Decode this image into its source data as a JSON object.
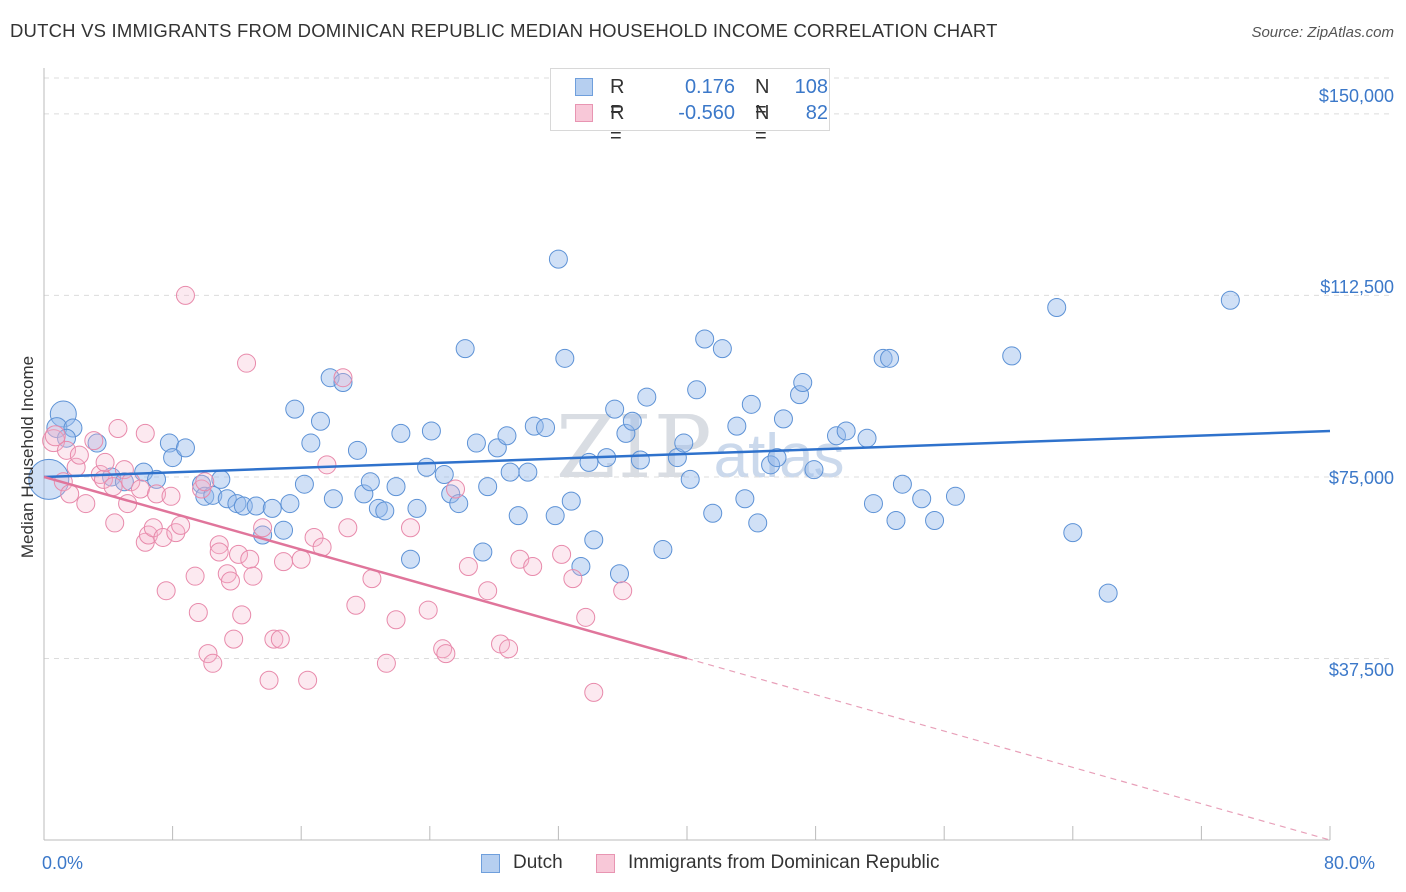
{
  "title": "DUTCH VS IMMIGRANTS FROM DOMINICAN REPUBLIC MEDIAN HOUSEHOLD INCOME CORRELATION CHART",
  "source": "Source: ZipAtlas.com",
  "watermark": {
    "zip": "ZIP",
    "atlas": "atlas"
  },
  "legend": {
    "rows": [
      {
        "r_label": "R =",
        "r_value": "0.176",
        "n_label": "N =",
        "n_value": "108"
      },
      {
        "r_label": "R =",
        "r_value": "-0.560",
        "n_label": "N =",
        "n_value": "82"
      }
    ]
  },
  "chart_data": {
    "type": "scatter",
    "title": "DUTCH VS IMMIGRANTS FROM DOMINICAN REPUBLIC MEDIAN HOUSEHOLD INCOME CORRELATION CHART",
    "xlabel": "",
    "ylabel": "Median Household Income",
    "xlim": [
      0,
      80
    ],
    "ylim": [
      0,
      157000
    ],
    "x_tick_labels": [
      "0.0%",
      "80.0%"
    ],
    "y_ticks": [
      37500,
      75000,
      112500,
      150000
    ],
    "y_tick_labels": [
      "$37,500",
      "$75,000",
      "$112,500",
      "$150,000"
    ],
    "colors": {
      "dutch": "#3b78c9",
      "dominican": "#e0759b"
    },
    "series": [
      {
        "name": "Dutch",
        "legend_label": "Dutch",
        "trend": {
          "x": [
            0,
            80
          ],
          "y": [
            75000,
            84500
          ],
          "style": "solid"
        },
        "points": [
          [
            0.3,
            74500,
            20
          ],
          [
            1.2,
            88000,
            13
          ],
          [
            0.8,
            85200,
            10
          ],
          [
            1.8,
            85100,
            9
          ],
          [
            1.4,
            83000,
            9
          ],
          [
            3.3,
            82000,
            9
          ],
          [
            4.2,
            75000,
            9
          ],
          [
            5,
            74000,
            9
          ],
          [
            6.2,
            76000,
            9
          ],
          [
            7,
            74500,
            9
          ],
          [
            7.8,
            82000,
            9
          ],
          [
            8,
            79000,
            9
          ],
          [
            8.8,
            81000,
            9
          ],
          [
            9.8,
            73500,
            9
          ],
          [
            10,
            71000,
            9
          ],
          [
            10.5,
            71200,
            9
          ],
          [
            11,
            74500,
            9
          ],
          [
            11.4,
            70500,
            9
          ],
          [
            12,
            69500,
            9
          ],
          [
            12.4,
            69000,
            9
          ],
          [
            13.2,
            69000,
            9
          ],
          [
            13.6,
            63000,
            9
          ],
          [
            14.2,
            68500,
            9
          ],
          [
            14.9,
            64000,
            9
          ],
          [
            15.3,
            69500,
            9
          ],
          [
            15.6,
            89000,
            9
          ],
          [
            16.2,
            73500,
            9
          ],
          [
            16.6,
            82000,
            9
          ],
          [
            17.2,
            86500,
            9
          ],
          [
            17.8,
            95500,
            9
          ],
          [
            18,
            70500,
            9
          ],
          [
            18.6,
            94500,
            9
          ],
          [
            19.5,
            80500,
            9
          ],
          [
            19.9,
            71500,
            9
          ],
          [
            20.3,
            74000,
            9
          ],
          [
            20.8,
            68500,
            9
          ],
          [
            21.2,
            68000,
            9
          ],
          [
            21.9,
            73000,
            9
          ],
          [
            22.2,
            84000,
            9
          ],
          [
            22.8,
            58000,
            9
          ],
          [
            23.2,
            68500,
            9
          ],
          [
            23.8,
            77000,
            9
          ],
          [
            24.1,
            84500,
            9
          ],
          [
            24.9,
            75500,
            9
          ],
          [
            25.3,
            71500,
            9
          ],
          [
            25.8,
            69500,
            9
          ],
          [
            26.2,
            101500,
            9
          ],
          [
            26.9,
            82000,
            9
          ],
          [
            27.3,
            59500,
            9
          ],
          [
            27.6,
            73000,
            9
          ],
          [
            28.2,
            81000,
            9
          ],
          [
            28.8,
            83500,
            9
          ],
          [
            29,
            76000,
            9
          ],
          [
            29.5,
            67000,
            9
          ],
          [
            30.1,
            76000,
            9
          ],
          [
            30.5,
            85500,
            9
          ],
          [
            31.2,
            85200,
            9
          ],
          [
            31.8,
            67000,
            9
          ],
          [
            32,
            120000,
            9
          ],
          [
            32.4,
            99500,
            9
          ],
          [
            32.8,
            70000,
            9
          ],
          [
            33.4,
            56500,
            9
          ],
          [
            33.9,
            78000,
            9
          ],
          [
            34.2,
            62000,
            9
          ],
          [
            35,
            79000,
            9
          ],
          [
            35.5,
            89000,
            9
          ],
          [
            35.8,
            55000,
            9
          ],
          [
            36.2,
            84000,
            9
          ],
          [
            36.6,
            86500,
            9
          ],
          [
            37.1,
            78500,
            9
          ],
          [
            37.5,
            91500,
            9
          ],
          [
            38.5,
            60000,
            9
          ],
          [
            39.4,
            79000,
            9
          ],
          [
            39.8,
            82000,
            9
          ],
          [
            40.2,
            74500,
            9
          ],
          [
            40.6,
            93000,
            9
          ],
          [
            41.1,
            103500,
            9
          ],
          [
            41.6,
            67500,
            9
          ],
          [
            42.2,
            101500,
            9
          ],
          [
            43.1,
            85500,
            9
          ],
          [
            43.6,
            70500,
            9
          ],
          [
            44,
            90000,
            9
          ],
          [
            44.4,
            65500,
            9
          ],
          [
            45.2,
            77500,
            9
          ],
          [
            45.6,
            79000,
            9
          ],
          [
            46,
            87000,
            9
          ],
          [
            47,
            92000,
            9
          ],
          [
            47.2,
            94500,
            9
          ],
          [
            47.9,
            76500,
            9
          ],
          [
            49.3,
            83500,
            9
          ],
          [
            49.9,
            84500,
            9
          ],
          [
            51.2,
            83000,
            9
          ],
          [
            51.6,
            69500,
            9
          ],
          [
            52.2,
            99500,
            9
          ],
          [
            52.6,
            99500,
            9
          ],
          [
            53,
            66000,
            9
          ],
          [
            53.4,
            73500,
            9
          ],
          [
            54.6,
            70500,
            9
          ],
          [
            55.4,
            66000,
            9
          ],
          [
            56.7,
            71000,
            9
          ],
          [
            60.2,
            100000,
            9
          ],
          [
            63,
            110000,
            9
          ],
          [
            64,
            63500,
            9
          ],
          [
            66.2,
            51000,
            9
          ],
          [
            73.8,
            111500,
            9
          ]
        ]
      },
      {
        "name": "Immigrants from Dominican Republic",
        "legend_label": "Immigrants from Dominican Republic",
        "trend": {
          "x": [
            0,
            40
          ],
          "y": [
            75000,
            37500
          ],
          "dashed_extension_to": [
            80,
            0
          ]
        },
        "points": [
          [
            0.6,
            82500,
            11
          ],
          [
            0.7,
            83500,
            10
          ],
          [
            1.2,
            74000,
            9
          ],
          [
            1.4,
            80500,
            9
          ],
          [
            1.6,
            71500,
            9
          ],
          [
            2,
            77000,
            9
          ],
          [
            2.2,
            79500,
            9
          ],
          [
            2.6,
            69500,
            9
          ],
          [
            3.1,
            82500,
            9
          ],
          [
            3.5,
            75500,
            9
          ],
          [
            3.7,
            74500,
            9
          ],
          [
            3.8,
            78000,
            9
          ],
          [
            4.3,
            73000,
            9
          ],
          [
            4.4,
            65500,
            9
          ],
          [
            4.6,
            85000,
            9
          ],
          [
            5,
            76500,
            9
          ],
          [
            5.2,
            69500,
            9
          ],
          [
            5.4,
            74000,
            9
          ],
          [
            6,
            72500,
            9
          ],
          [
            6.3,
            84000,
            9
          ],
          [
            6.3,
            61500,
            9
          ],
          [
            6.5,
            63000,
            9
          ],
          [
            6.8,
            64500,
            9
          ],
          [
            7,
            71500,
            9
          ],
          [
            7.4,
            62500,
            9
          ],
          [
            7.6,
            51500,
            9
          ],
          [
            7.9,
            71000,
            9
          ],
          [
            8.2,
            63500,
            9
          ],
          [
            8.5,
            65000,
            9
          ],
          [
            8.8,
            112500,
            9
          ],
          [
            9.4,
            54500,
            9
          ],
          [
            9.6,
            47000,
            9
          ],
          [
            9.8,
            72500,
            9
          ],
          [
            10,
            74000,
            9
          ],
          [
            10.2,
            38500,
            9
          ],
          [
            10.5,
            36500,
            9
          ],
          [
            10.9,
            61000,
            9
          ],
          [
            10.9,
            59500,
            9
          ],
          [
            11.4,
            55000,
            9
          ],
          [
            11.6,
            53500,
            9
          ],
          [
            11.8,
            41500,
            9
          ],
          [
            12.1,
            59000,
            9
          ],
          [
            12.3,
            46500,
            9
          ],
          [
            12.6,
            98500,
            9
          ],
          [
            12.8,
            58000,
            9
          ],
          [
            13,
            54500,
            9
          ],
          [
            13.6,
            64500,
            9
          ],
          [
            14,
            33000,
            9
          ],
          [
            14.3,
            41500,
            9
          ],
          [
            14.7,
            41500,
            9
          ],
          [
            14.9,
            57500,
            9
          ],
          [
            16,
            58000,
            9
          ],
          [
            16.4,
            33000,
            9
          ],
          [
            16.8,
            62500,
            9
          ],
          [
            17.3,
            60500,
            9
          ],
          [
            17.6,
            77500,
            9
          ],
          [
            18.6,
            95500,
            9
          ],
          [
            18.9,
            64500,
            9
          ],
          [
            19.4,
            48500,
            9
          ],
          [
            20.4,
            54000,
            9
          ],
          [
            21.3,
            36500,
            9
          ],
          [
            21.9,
            45500,
            9
          ],
          [
            22.8,
            64500,
            9
          ],
          [
            23.9,
            47500,
            9
          ],
          [
            24.8,
            39500,
            9
          ],
          [
            25,
            38500,
            9
          ],
          [
            25.6,
            72500,
            9
          ],
          [
            26.4,
            56500,
            9
          ],
          [
            27.6,
            51500,
            9
          ],
          [
            28.4,
            40500,
            9
          ],
          [
            28.9,
            39500,
            9
          ],
          [
            29.6,
            58000,
            9
          ],
          [
            30.4,
            56500,
            9
          ],
          [
            32.2,
            59000,
            9
          ],
          [
            32.9,
            54000,
            9
          ],
          [
            33.7,
            46000,
            9
          ],
          [
            34.2,
            30500,
            9
          ],
          [
            36,
            51500,
            9
          ]
        ]
      }
    ]
  }
}
